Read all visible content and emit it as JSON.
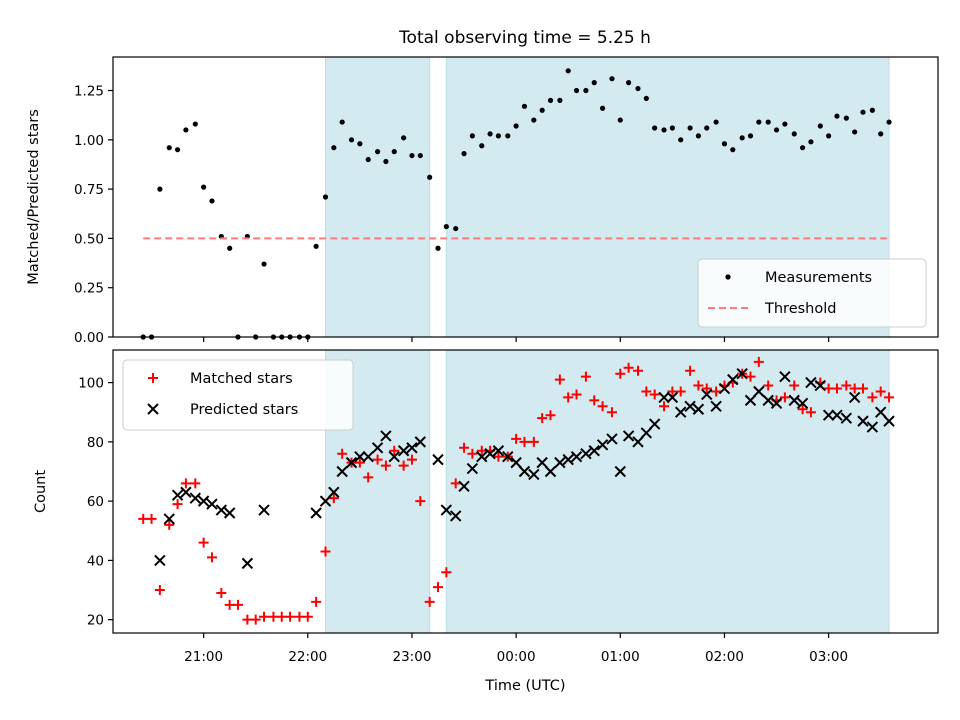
{
  "title": "Total observing time = 5.25 h",
  "chart_data": [
    {
      "type": "scatter",
      "panel": "top",
      "ylabel": "Matched/Predicted stars",
      "xlabel": "",
      "xlim": [
        20.13,
        4.05
      ],
      "ylim": [
        0.0,
        1.42
      ],
      "x_is_time": true,
      "yticks": [
        0.0,
        0.25,
        0.5,
        0.75,
        1.0,
        1.25
      ],
      "ytick_labels": [
        "0.00",
        "0.25",
        "0.50",
        "0.75",
        "1.00",
        "1.25"
      ],
      "grid": false,
      "legend_position": "lower-right",
      "observing_windows": [
        [
          22.17,
          23.17
        ],
        [
          23.33,
          3.58
        ]
      ],
      "window_color": "#d4eaf1",
      "series": [
        {
          "name": "Measurements",
          "kind": "dots",
          "color": "#000000",
          "x": [
            20.42,
            20.5,
            20.58,
            20.67,
            20.75,
            20.83,
            20.92,
            21.0,
            21.08,
            21.17,
            21.25,
            21.33,
            21.42,
            21.5,
            21.58,
            21.67,
            21.75,
            21.83,
            21.92,
            22.0,
            22.08,
            22.17,
            22.25,
            22.33,
            22.42,
            22.5,
            22.58,
            22.67,
            22.75,
            22.83,
            22.92,
            23.0,
            23.08,
            23.17,
            23.25,
            23.33,
            23.42,
            23.5,
            23.58,
            23.67,
            23.75,
            23.83,
            23.92,
            0.0,
            0.08,
            0.17,
            0.25,
            0.33,
            0.42,
            0.5,
            0.58,
            0.67,
            0.75,
            0.83,
            0.92,
            1.0,
            1.08,
            1.17,
            1.25,
            1.33,
            1.42,
            1.5,
            1.58,
            1.67,
            1.75,
            1.83,
            1.92,
            2.0,
            2.08,
            2.17,
            2.25,
            2.33,
            2.42,
            2.5,
            2.58,
            2.67,
            2.75,
            2.83,
            2.92,
            3.0,
            3.08,
            3.17,
            3.25,
            3.33,
            3.42,
            3.5,
            3.58
          ],
          "y": [
            0.0,
            0.0,
            0.75,
            0.96,
            0.95,
            1.05,
            1.08,
            0.76,
            0.69,
            0.51,
            0.45,
            0.0,
            0.51,
            0.0,
            0.37,
            0.0,
            0.0,
            0.0,
            0.0,
            0.0,
            0.46,
            0.71,
            0.96,
            1.09,
            1.0,
            0.98,
            0.9,
            0.94,
            0.89,
            0.94,
            1.01,
            0.92,
            0.92,
            0.81,
            0.45,
            0.56,
            0.55,
            0.93,
            1.02,
            0.97,
            1.03,
            1.02,
            1.02,
            1.07,
            1.17,
            1.1,
            1.15,
            1.2,
            1.2,
            1.35,
            1.25,
            1.25,
            1.29,
            1.16,
            1.31,
            1.1,
            1.29,
            1.26,
            1.21,
            1.06,
            1.05,
            1.06,
            1.0,
            1.06,
            1.02,
            1.06,
            1.09,
            0.98,
            0.95,
            1.01,
            1.02,
            1.09,
            1.09,
            1.05,
            1.08,
            1.03,
            0.96,
            0.99,
            1.07,
            1.02,
            1.12,
            1.11,
            1.04,
            1.14,
            1.15,
            1.03,
            1.09
          ]
        },
        {
          "name": "Threshold",
          "kind": "dashed-line",
          "color": "#ff7b7b",
          "x": [
            20.42,
            3.58
          ],
          "y": [
            0.5,
            0.5
          ]
        }
      ]
    },
    {
      "type": "scatter",
      "panel": "bottom",
      "xlabel": "Time (UTC)",
      "ylabel": "Count",
      "xlim": [
        20.13,
        4.05
      ],
      "ylim": [
        15.5,
        111
      ],
      "x_is_time": true,
      "xticks": [
        21.0,
        22.0,
        23.0,
        0.0,
        1.0,
        2.0,
        3.0
      ],
      "xtick_labels": [
        "21:00",
        "22:00",
        "23:00",
        "00:00",
        "01:00",
        "02:00",
        "03:00"
      ],
      "yticks": [
        20,
        40,
        60,
        80,
        100
      ],
      "ytick_labels": [
        "20",
        "40",
        "60",
        "80",
        "100"
      ],
      "grid": false,
      "legend_position": "upper-left",
      "observing_windows": [
        [
          22.17,
          23.17
        ],
        [
          23.33,
          3.58
        ]
      ],
      "window_color": "#d4eaf1",
      "series": [
        {
          "name": "Matched stars",
          "kind": "plus",
          "color": "#ff0000",
          "x": [
            20.42,
            20.5,
            20.58,
            20.67,
            20.75,
            20.83,
            20.92,
            21.0,
            21.08,
            21.17,
            21.25,
            21.33,
            21.42,
            21.5,
            21.58,
            21.67,
            21.75,
            21.83,
            21.92,
            22.0,
            22.08,
            22.17,
            22.25,
            22.33,
            22.42,
            22.5,
            22.58,
            22.67,
            22.75,
            22.83,
            22.92,
            23.0,
            23.08,
            23.17,
            23.25,
            23.33,
            23.42,
            23.5,
            23.58,
            23.67,
            23.75,
            23.83,
            23.92,
            0.0,
            0.08,
            0.17,
            0.25,
            0.33,
            0.42,
            0.5,
            0.58,
            0.67,
            0.75,
            0.83,
            0.92,
            1.0,
            1.08,
            1.17,
            1.25,
            1.33,
            1.42,
            1.5,
            1.58,
            1.67,
            1.75,
            1.83,
            1.92,
            2.0,
            2.08,
            2.17,
            2.25,
            2.33,
            2.42,
            2.5,
            2.58,
            2.67,
            2.75,
            2.83,
            2.92,
            3.0,
            3.08,
            3.17,
            3.25,
            3.33,
            3.42,
            3.5,
            3.58
          ],
          "y": [
            54,
            54,
            30,
            52,
            59,
            66,
            66,
            46,
            41,
            29,
            25,
            25,
            20,
            20,
            21,
            21,
            21,
            21,
            21,
            21,
            26,
            43,
            61,
            76,
            73,
            73,
            68,
            74,
            72,
            77,
            72,
            74,
            60,
            26,
            31,
            36,
            66,
            78,
            76,
            77,
            77,
            75,
            75,
            81,
            80,
            80,
            88,
            89,
            101,
            95,
            96,
            102,
            94,
            92,
            90,
            103,
            105,
            104,
            97,
            96,
            92,
            97,
            97,
            104,
            99,
            98,
            97,
            99,
            100,
            103,
            102,
            107,
            99,
            94,
            95,
            99,
            91,
            90,
            100,
            98,
            98,
            99,
            98,
            98,
            95,
            97,
            95
          ]
        },
        {
          "name": "Predicted stars",
          "kind": "cross",
          "color": "#000000",
          "x": [
            20.58,
            20.67,
            20.75,
            20.83,
            20.92,
            21.0,
            21.08,
            21.17,
            21.25,
            21.42,
            21.58,
            22.08,
            22.17,
            22.25,
            22.33,
            22.42,
            22.5,
            22.58,
            22.67,
            22.75,
            22.83,
            22.92,
            23.0,
            23.08,
            23.25,
            23.33,
            23.42,
            23.5,
            23.58,
            23.67,
            23.75,
            23.83,
            23.92,
            0.0,
            0.08,
            0.17,
            0.25,
            0.33,
            0.42,
            0.5,
            0.58,
            0.67,
            0.75,
            0.83,
            0.92,
            1.0,
            1.08,
            1.17,
            1.25,
            1.33,
            1.42,
            1.5,
            1.58,
            1.67,
            1.75,
            1.83,
            1.92,
            2.0,
            2.08,
            2.17,
            2.25,
            2.33,
            2.42,
            2.5,
            2.58,
            2.67,
            2.75,
            2.83,
            2.92,
            3.0,
            3.08,
            3.17,
            3.25,
            3.33,
            3.42,
            3.5,
            3.58
          ],
          "y": [
            40,
            54,
            62,
            63,
            61,
            60,
            59,
            57,
            56,
            39,
            57,
            56,
            60,
            63,
            70,
            73,
            75,
            75,
            78,
            82,
            75,
            77,
            78,
            80,
            74,
            57,
            55,
            65,
            71,
            75,
            76,
            77,
            75,
            73,
            70,
            69,
            73,
            70,
            73,
            74,
            75,
            76,
            77,
            79,
            81,
            70,
            82,
            80,
            83,
            86,
            95,
            95,
            90,
            92,
            91,
            96,
            92,
            98,
            101,
            103,
            94,
            97,
            94,
            93,
            102,
            94,
            93,
            100,
            99,
            89,
            89,
            88,
            95,
            87,
            85,
            90,
            87
          ]
        }
      ]
    }
  ]
}
